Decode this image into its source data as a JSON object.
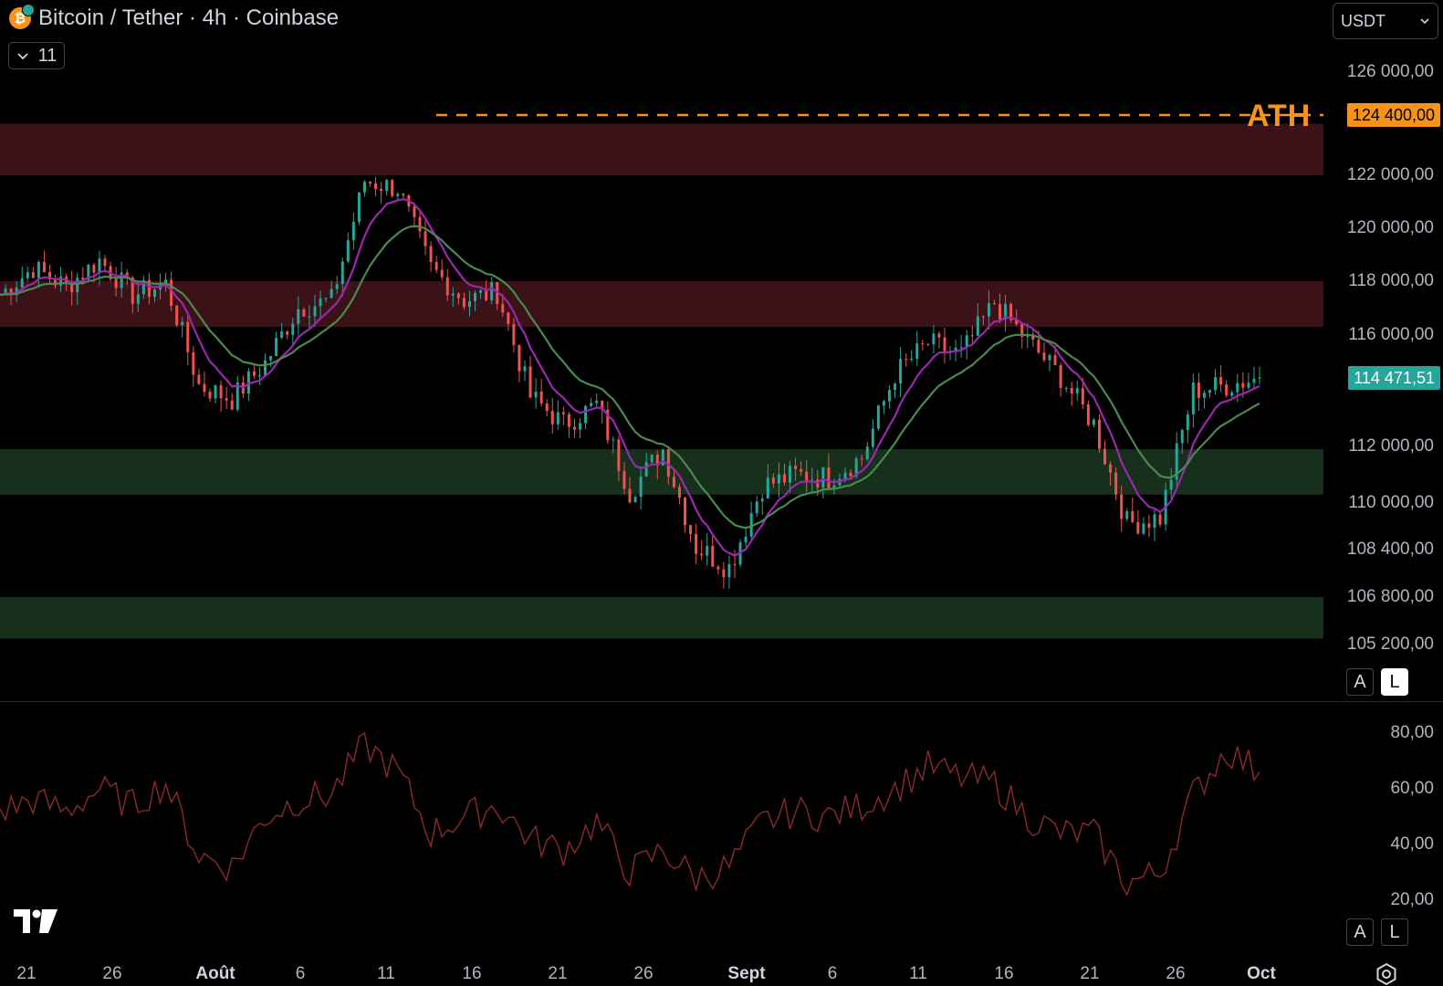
{
  "header": {
    "symbol_title": "Bitcoin / Tether · 4h · Coinbase",
    "indicator_count": "11",
    "currency": "USDT"
  },
  "colors": {
    "up": "#26a69a",
    "down": "#ef5350",
    "resistance_zone": "#3a1217",
    "support_zone": "#16301c",
    "ema_fast": "#9c27b0",
    "ema_slow": "#4a8a4f",
    "ath": "#f7931a",
    "rsi_line": "#8b2a2a"
  },
  "price_axis": {
    "labels": [
      "126 000,00",
      "122 000,00",
      "120 000,00",
      "118 000,00",
      "116 000,00",
      "112 000,00",
      "110 000,00",
      "108 400,00",
      "106 800,00",
      "105 200,00"
    ],
    "ath_label": "ATH",
    "ath_value": "124 400,00",
    "last_value": "114 471,51",
    "scale_buttons": [
      "A",
      "L"
    ]
  },
  "rsi_axis": {
    "labels": [
      "80,00",
      "60,00",
      "40,00",
      "20,00"
    ],
    "scale_buttons": [
      "A",
      "L"
    ]
  },
  "time_axis": {
    "labels": [
      {
        "text": "21",
        "major": false
      },
      {
        "text": "26",
        "major": false
      },
      {
        "text": "Août",
        "major": true
      },
      {
        "text": "6",
        "major": false
      },
      {
        "text": "11",
        "major": false
      },
      {
        "text": "16",
        "major": false
      },
      {
        "text": "21",
        "major": false
      },
      {
        "text": "26",
        "major": false
      },
      {
        "text": "Sept",
        "major": true
      },
      {
        "text": "6",
        "major": false
      },
      {
        "text": "11",
        "major": false
      },
      {
        "text": "16",
        "major": false
      },
      {
        "text": "21",
        "major": false
      },
      {
        "text": "26",
        "major": false
      },
      {
        "text": "Oct",
        "major": true
      }
    ]
  },
  "chart_data": [
    {
      "type": "candlestick",
      "title": "Bitcoin / Tether · 4h · Coinbase",
      "xlabel": "",
      "ylabel": "",
      "x": [
        "2025-07-20",
        "2025-07-22",
        "2025-07-24",
        "2025-07-26",
        "2025-07-28",
        "2025-07-30",
        "2025-08-01",
        "2025-08-03",
        "2025-08-05",
        "2025-08-07",
        "2025-08-09",
        "2025-08-11",
        "2025-08-13",
        "2025-08-14",
        "2025-08-16",
        "2025-08-18",
        "2025-08-20",
        "2025-08-22",
        "2025-08-24",
        "2025-08-26",
        "2025-08-28",
        "2025-08-30",
        "2025-09-01",
        "2025-09-03",
        "2025-09-05",
        "2025-09-07",
        "2025-09-09",
        "2025-09-11",
        "2025-09-13",
        "2025-09-15",
        "2025-09-17",
        "2025-09-19",
        "2025-09-21",
        "2025-09-23",
        "2025-09-25",
        "2025-09-27",
        "2025-09-29",
        "2025-09-30",
        "2025-10-01"
      ],
      "close": [
        117500,
        118500,
        117800,
        118800,
        117500,
        117900,
        114200,
        113700,
        115000,
        117000,
        117300,
        121800,
        121500,
        118500,
        117300,
        117600,
        113800,
        112800,
        113500,
        110400,
        111900,
        108500,
        107800,
        110600,
        111000,
        110900,
        111600,
        114600,
        115700,
        115300,
        117200,
        115800,
        114500,
        112800,
        109300,
        109500,
        114000,
        114200,
        114471.51
      ],
      "ylim": [
        105200,
        126000
      ]
    },
    {
      "type": "line",
      "title": "",
      "x": [
        "2025-07-20",
        "2025-07-22",
        "2025-07-24",
        "2025-07-26",
        "2025-07-28",
        "2025-07-30",
        "2025-08-01",
        "2025-08-03",
        "2025-08-05",
        "2025-08-07",
        "2025-08-09",
        "2025-08-11",
        "2025-08-13",
        "2025-08-14",
        "2025-08-16",
        "2025-08-18",
        "2025-08-20",
        "2025-08-22",
        "2025-08-24",
        "2025-08-26",
        "2025-08-28",
        "2025-08-30",
        "2025-09-01",
        "2025-09-03",
        "2025-09-05",
        "2025-09-07",
        "2025-09-09",
        "2025-09-11",
        "2025-09-13",
        "2025-09-15",
        "2025-09-17",
        "2025-09-19",
        "2025-09-21",
        "2025-09-23",
        "2025-09-25",
        "2025-09-27",
        "2025-09-29",
        "2025-09-30",
        "2025-10-01"
      ],
      "series": [
        {
          "name": "",
          "values": [
            52,
            56,
            52,
            60,
            54,
            62,
            36,
            32,
            50,
            56,
            58,
            76,
            66,
            44,
            50,
            54,
            42,
            38,
            48,
            30,
            38,
            28,
            32,
            48,
            52,
            50,
            54,
            60,
            68,
            64,
            62,
            50,
            44,
            44,
            26,
            30,
            58,
            74,
            66
          ]
        }
      ],
      "ylim": [
        20,
        80
      ]
    }
  ]
}
